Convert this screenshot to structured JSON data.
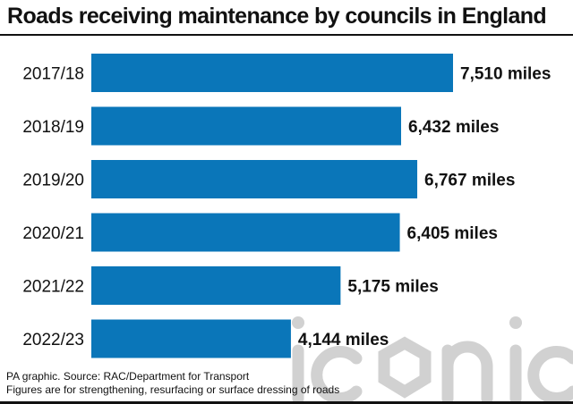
{
  "chart_data": {
    "type": "bar",
    "orientation": "horizontal",
    "title": "Roads receiving maintenance by councils in England",
    "categories": [
      "2017/18",
      "2018/19",
      "2019/20",
      "2020/21",
      "2021/22",
      "2022/23"
    ],
    "values": [
      7510,
      6432,
      6767,
      6405,
      5175,
      4144
    ],
    "data_labels": [
      "7,510 miles",
      "6,432 miles",
      "6,767 miles",
      "6,405 miles",
      "5,175 miles",
      "4,144 miles"
    ],
    "unit": "miles",
    "xlabel": "",
    "ylabel": "",
    "xlim": [
      0,
      7510
    ],
    "grid": false,
    "legend": "none",
    "bar_color": "#0a76b9"
  },
  "footer": {
    "source": "PA graphic. Source: RAC/Department for Transport",
    "note": "Figures are for strengthening, resurfacing or surface dressing of roads"
  },
  "watermark": {
    "logo_text": "iconic",
    "icon": "iconic-watermark-logo",
    "color": "#c9c9c9"
  }
}
